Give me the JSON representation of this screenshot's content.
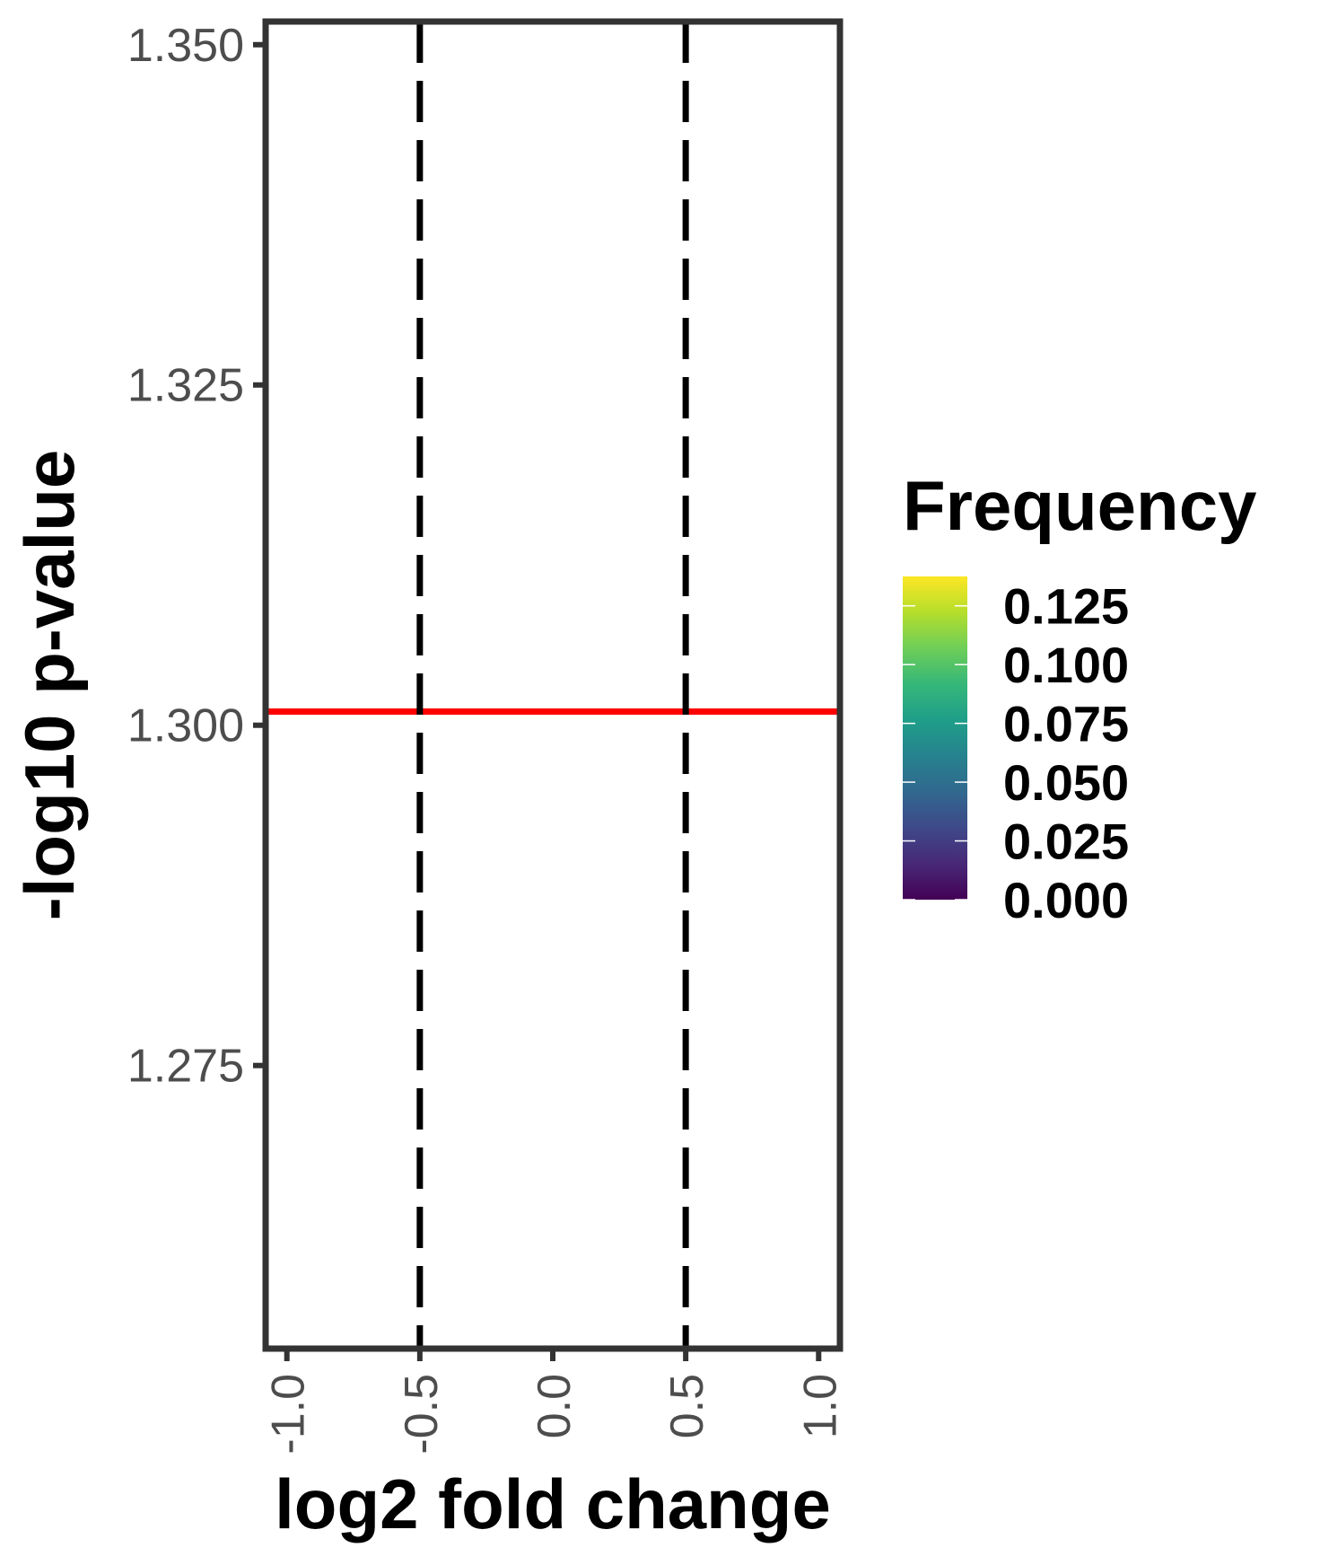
{
  "chart_data": {
    "type": "scatter",
    "title": "",
    "xlabel": "log2 fold change",
    "ylabel": "-log10 p-value",
    "xlim": [
      -1.08,
      1.08
    ],
    "ylim": [
      1.2542,
      1.3517
    ],
    "x_ticks": [
      {
        "value": -1.0,
        "label": "-1.0"
      },
      {
        "value": -0.5,
        "label": "-0.5"
      },
      {
        "value": 0.0,
        "label": "0.0"
      },
      {
        "value": 0.5,
        "label": "0.5"
      },
      {
        "value": 1.0,
        "label": "1.0"
      }
    ],
    "y_ticks": [
      {
        "value": 1.275,
        "label": "1.275"
      },
      {
        "value": 1.3,
        "label": "1.300"
      },
      {
        "value": 1.325,
        "label": "1.325"
      },
      {
        "value": 1.35,
        "label": "1.350"
      }
    ],
    "points": [],
    "reference_lines": [
      {
        "orientation": "horizontal",
        "value": 1.301,
        "color": "#ff0000",
        "style": "solid"
      },
      {
        "orientation": "vertical",
        "value": -0.5,
        "color": "#000000",
        "style": "dashed"
      },
      {
        "orientation": "vertical",
        "value": 0.5,
        "color": "#000000",
        "style": "dashed"
      }
    ],
    "grid": false,
    "legend": {
      "title": "Frequency",
      "placement": "right",
      "colormap": "viridis",
      "range": [
        0.0,
        0.1375
      ],
      "ticks": [
        {
          "value": 0.125,
          "label": "0.125"
        },
        {
          "value": 0.1,
          "label": "0.100"
        },
        {
          "value": 0.075,
          "label": "0.075"
        },
        {
          "value": 0.05,
          "label": "0.050"
        },
        {
          "value": 0.025,
          "label": "0.025"
        },
        {
          "value": 0.0,
          "label": "0.000"
        }
      ]
    },
    "colors": {
      "panel_border": "#333333",
      "tick_text": "#4d4d4d",
      "viridis": [
        "#440154",
        "#482878",
        "#3e4989",
        "#31688e",
        "#26828e",
        "#1f9e89",
        "#35b779",
        "#6ece58",
        "#b5de2b",
        "#fde725"
      ]
    }
  }
}
